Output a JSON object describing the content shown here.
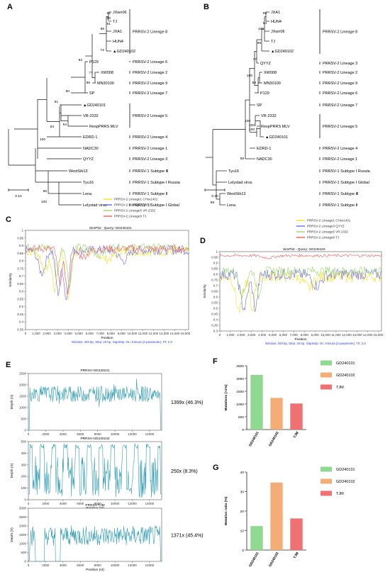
{
  "panels": {
    "A": {
      "letter": "A",
      "scale": "0.10",
      "tips": [
        "JXwn06",
        "TJ",
        "JXA1",
        "HUN4",
        "▲GD240102",
        "P129",
        "XW008",
        "MN30100",
        "SP",
        "▲GD240101",
        "VR-2332",
        "RespPRRS MLV",
        "EDRD-1",
        "NADC30",
        "QYYZ",
        "WestSib13",
        "Tyu16",
        "Lena",
        "Lelystad virus"
      ],
      "bootstrap": [
        "92",
        "60",
        "91",
        "98",
        "72",
        "93",
        "77",
        "96",
        "80",
        "81",
        "63",
        "100",
        "54",
        "86",
        "100"
      ],
      "groups": [
        "PRRSV-2 Lineage 8",
        "PRRSV-2 Lineage 6",
        "PRRSV-2 Lineage 2",
        "PRRSV-2 Lineage 9",
        "PRRSV-2 Lineage 7",
        "PRRSV-2 Lineage 5",
        "PRRSV-2 Lineage 4",
        "PRRSV-2 Lineage 1",
        "PRRSV-2 Lineage 3",
        "PRRSV-1 Subtype Ⅲ",
        "PRRSV-1 Subtype Ⅰ Russia",
        "PRRSV-1 Subtype Ⅱ",
        "PRRSV-1 Subtype Ⅰ Global"
      ]
    },
    "B": {
      "letter": "B",
      "scale": "0.20",
      "tips": [
        "JXA1",
        "HUN4",
        "JXwn06",
        "TJ",
        "▲GD240102",
        "QYYZ",
        "XW008",
        "MN30100",
        "P129",
        "SP",
        "VR-2332",
        "RespPRRS MLV",
        "▲GD240101",
        "EDRD-1",
        "NADC30",
        "Tyu16",
        "Lelystad virus",
        "WestSib13",
        "Lena"
      ],
      "bootstrap": [
        "99",
        "54",
        "100",
        "99",
        "77",
        "100",
        "99",
        "100",
        "100",
        "100",
        "99",
        "99"
      ],
      "groups": [
        "PRRSV-2 Lineage 8",
        "PRRSV-2 Lineage 3",
        "PRRSV-2 Lineage 2",
        "PRRSV-2 Lineage 9",
        "PRRSV-2 Lineage 6",
        "PRRSV-2 Lineage 7",
        "PRRSV-2 Lineage 5",
        "PRRSV-2 Lineage 4",
        "PRRSV-2 Lineage 1",
        "PRRSV-1 Subtype Ⅰ Russia",
        "PRRSV-1 Subtype Ⅰ Global",
        "PRRSV-1 Subtype Ⅲ",
        "PRRSV-1 Subtype Ⅱ"
      ]
    },
    "C": {
      "letter": "C",
      "title": "SimPlot - Query: GD240101",
      "ylabel": "Similarity",
      "xlabel": "Position",
      "note": "Window: 200 bp, Step: 20 bp, GapStrip: On, Kimura (2-parameter), T/t: 2.0",
      "legend": [
        "PRRSV-2 Lineage1 CHsx1401",
        "PRRSV-2 Lineage3 QYYZ",
        "PRRSV-2 Lineage5 VR-2332",
        "PRRSV-2 Lineage8 TJ"
      ],
      "yticks": [
        "0.35",
        "0.4",
        "0.45",
        "0.5",
        "0.55",
        "0.6",
        "0.65",
        "0.7",
        "0.75",
        "0.8",
        "0.85",
        "0.9",
        "0.95",
        "1"
      ],
      "xticks": [
        "0",
        "1,000",
        "2,000",
        "3,000",
        "4,000",
        "5,000",
        "6,000",
        "7,000",
        "8,000",
        "9,000",
        "10,000",
        "11,000",
        "12,000",
        "13,000",
        "14,000",
        "15,000"
      ]
    },
    "D": {
      "letter": "D",
      "title": "SimPlot - Query: GD240102",
      "ylabel": "Similarity",
      "xlabel": "Position",
      "note": "Window: 200 bp, Step: 20 bp, GapStrip: On, Kimura (2-parameter), T/t: 2.0",
      "legend": [
        "PRRSV-2 Lineage1 CHsx1401",
        "PRRSV-2 Lineage3 QYYZ",
        "PRRSV-2 Lineage5 VR-2332",
        "PRRSV-2 Lineage8 TJ"
      ],
      "yticks": [
        "0.3",
        "0.35",
        "0.4",
        "0.45",
        "0.5",
        "0.55",
        "0.6",
        "0.65",
        "0.7",
        "0.75",
        "0.8",
        "0.85",
        "0.9",
        "0.95",
        "1"
      ],
      "xticks": [
        "0",
        "1,000",
        "2,000",
        "3,000",
        "4,000",
        "5,000",
        "6,000",
        "7,000",
        "8,000",
        "9,000",
        "10,000",
        "11,000",
        "12,000",
        "13,000",
        "14,000",
        "15,000"
      ]
    },
    "E": {
      "letter": "E",
      "ylabel": "Depth (X)",
      "xlabel": "Position (nt)",
      "xticks": [
        "0",
        "2000",
        "4000",
        "6000",
        "8000",
        "10000",
        "12000",
        "14000"
      ],
      "tracks": [
        {
          "title": "PRRSV-GD240101",
          "summary": "1399x (46.3%)",
          "yticks": [
            "0",
            "500",
            "1000",
            "1500",
            "2000",
            "2500"
          ]
        },
        {
          "title": "PRRSV-GD240102",
          "summary": "250x (8.3%)",
          "yticks": [
            "0",
            "100",
            "200",
            "300",
            "400",
            "500"
          ]
        },
        {
          "title": "PRRSV-TJM",
          "summary": "1371x (45.4%)",
          "yticks": [
            "0",
            "500",
            "1000",
            "1500",
            "2000",
            "2500",
            "3000"
          ]
        }
      ]
    },
    "F": {
      "letter": "F"
    },
    "G": {
      "letter": "G"
    }
  },
  "colors": {
    "green": "#90d990",
    "orange": "#f5ad78",
    "red": "#ef7171",
    "trace": "#2e9bb5",
    "yellow": "#f2e11f",
    "blue": "#6a6af0",
    "sgreen": "#9bd76a",
    "sred": "#f05a5a"
  },
  "chart_data": [
    {
      "type": "bar",
      "panel": "F",
      "categories": [
        "GD240101",
        "GD240102",
        "TJM"
      ],
      "values": [
        2140,
        1240,
        1020
      ],
      "ylabel": "Mutations (>1%)",
      "ylim": [
        0,
        2500
      ],
      "yticks": [
        "0",
        "500",
        "1000",
        "1500",
        "2000",
        "2500"
      ],
      "legend": [
        "GD240101",
        "GD240102",
        "TJM"
      ],
      "legend_position": "top-right",
      "colors": [
        "#90d990",
        "#f5ad78",
        "#ef7171"
      ]
    },
    {
      "type": "bar",
      "panel": "G",
      "categories": [
        "GD240101",
        "GD240102",
        "TJM"
      ],
      "values": [
        12.3,
        34.6,
        16.2
      ],
      "ylabel": "Mutation ratio (%)",
      "ylim": [
        0,
        40
      ],
      "yticks": [
        "0",
        "10",
        "20",
        "30",
        "40"
      ],
      "legend": [
        "GD240101",
        "GD240102",
        "TJM"
      ],
      "legend_position": "top-right",
      "colors": [
        "#90d990",
        "#f5ad78",
        "#ef7171"
      ]
    }
  ]
}
